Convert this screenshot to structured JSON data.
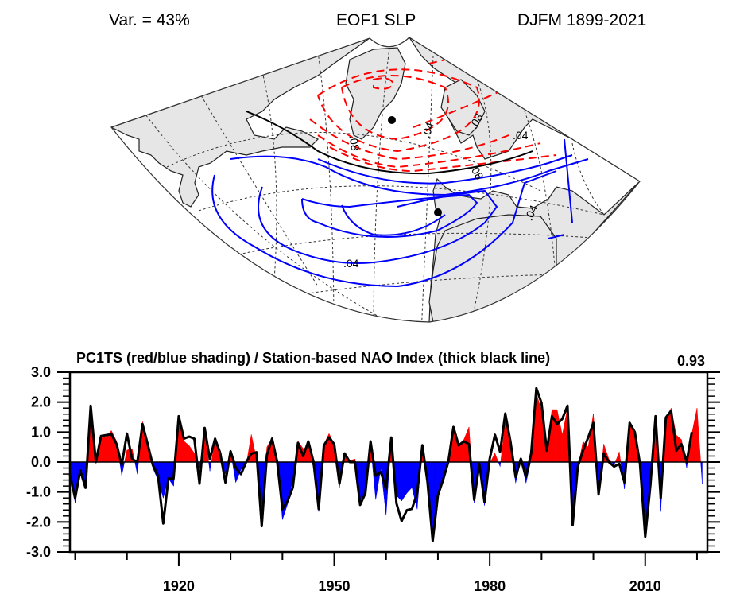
{
  "header": {
    "variance": "Var. = 43%",
    "title": "EOF1 SLP",
    "period": "DJFM 1899-2021"
  },
  "map": {
    "projection": "North Atlantic conic sector",
    "contour_labels": [
      ".04",
      ".04",
      ".04",
      ".08",
      ".08",
      ".08",
      ".04"
    ],
    "colors": {
      "positive": "#0000ff",
      "negative": "#ff0000",
      "zero": "#000000",
      "land": "#e6e6e6"
    },
    "stations": [
      "Iceland (Reykjavik)",
      "Portugal (Lisbon)"
    ]
  },
  "chart_data": {
    "type": "area",
    "title": "PC1TS (red/blue shading) / Station-based NAO Index (thick black line)",
    "correlation_label": "0.93",
    "xlabel": "",
    "ylabel": "",
    "xlim": [
      1899,
      2022
    ],
    "ylim": [
      -3.0,
      3.0
    ],
    "yticks": [
      "3.0",
      "2.0",
      "1.0",
      "0.0",
      "-1.0",
      "-2.0",
      "-3.0"
    ],
    "ytick_values": [
      3,
      2,
      1,
      0,
      -1,
      -2,
      -3
    ],
    "xticks": [
      "1920",
      "1950",
      "1980",
      "2010"
    ],
    "xtick_values": [
      1920,
      1950,
      1980,
      2010
    ],
    "positive_color": "#ff0000",
    "negative_color": "#0000ff",
    "line_color": "#000000",
    "years": [
      1899,
      1900,
      1901,
      1902,
      1903,
      1904,
      1905,
      1906,
      1907,
      1908,
      1909,
      1910,
      1911,
      1912,
      1913,
      1914,
      1915,
      1916,
      1917,
      1918,
      1919,
      1920,
      1921,
      1922,
      1923,
      1924,
      1925,
      1926,
      1927,
      1928,
      1929,
      1930,
      1931,
      1932,
      1933,
      1934,
      1935,
      1936,
      1937,
      1938,
      1939,
      1940,
      1941,
      1942,
      1943,
      1944,
      1945,
      1946,
      1947,
      1948,
      1949,
      1950,
      1951,
      1952,
      1953,
      1954,
      1955,
      1956,
      1957,
      1958,
      1959,
      1960,
      1961,
      1962,
      1963,
      1964,
      1965,
      1966,
      1967,
      1968,
      1969,
      1970,
      1971,
      1972,
      1973,
      1974,
      1975,
      1976,
      1977,
      1978,
      1979,
      1980,
      1981,
      1982,
      1983,
      1984,
      1985,
      1986,
      1987,
      1988,
      1989,
      1990,
      1991,
      1992,
      1993,
      1994,
      1995,
      1996,
      1997,
      1998,
      1999,
      2000,
      2001,
      2002,
      2003,
      2004,
      2005,
      2006,
      2007,
      2008,
      2009,
      2010,
      2011,
      2012,
      2013,
      2014,
      2015,
      2016,
      2017,
      2018,
      2019,
      2020,
      2021
    ],
    "series": [
      {
        "name": "PC1TS",
        "style": "shading",
        "values": [
          -0.5,
          -1.35,
          -0.3,
          -0.85,
          1.6,
          0.05,
          0.8,
          0.85,
          1.05,
          0.7,
          -0.45,
          0.4,
          0.45,
          -0.4,
          1.35,
          0.5,
          -0.2,
          -0.6,
          -1.2,
          -0.55,
          -0.8,
          1.45,
          0.7,
          0.55,
          0.3,
          -0.2,
          1.0,
          -0.3,
          0.75,
          0.35,
          -0.4,
          0.35,
          -0.68,
          -0.25,
          -0.1,
          0.92,
          0.1,
          -2.0,
          0.5,
          0.8,
          0.1,
          -1.92,
          -1.4,
          -0.6,
          0.7,
          0.45,
          0.5,
          -0.2,
          -1.65,
          0.6,
          0.95,
          0.6,
          -0.85,
          0.3,
          0.05,
          0.1,
          -1.3,
          -1.0,
          0.6,
          -1.25,
          -0.2,
          -1.78,
          0.85,
          -1.12,
          -1.3,
          -1.04,
          -0.85,
          -1.57,
          0.6,
          -0.6,
          -2.55,
          -1.1,
          -0.6,
          0.0,
          1.1,
          0.5,
          0.75,
          1.17,
          -1.35,
          -0.1,
          -1.45,
          -0.05,
          0.3,
          -0.15,
          1.35,
          0.65,
          -0.7,
          0.05,
          -0.7,
          0.1,
          2.3,
          1.7,
          0.4,
          1.75,
          1.75,
          0.91,
          1.8,
          -1.9,
          -0.2,
          0.69,
          0.5,
          1.62,
          -1.05,
          0.6,
          0.1,
          -0.1,
          0.34,
          -0.9,
          1.3,
          0.85,
          -0.1,
          -2.55,
          -0.4,
          1.5,
          -1.65,
          1.45,
          1.8,
          0.9,
          0.75,
          -0.2,
          0.95,
          1.8,
          -0.72
        ]
      },
      {
        "name": "Station-based NAO Index",
        "style": "line",
        "values": [
          -0.42,
          -1.21,
          -0.28,
          -0.86,
          1.88,
          0.0,
          0.87,
          0.9,
          0.93,
          0.6,
          -0.1,
          0.95,
          0.1,
          0.0,
          1.27,
          0.6,
          -0.1,
          -0.45,
          -2.05,
          -0.55,
          -0.55,
          1.53,
          0.78,
          0.85,
          0.78,
          -0.72,
          1.14,
          0.1,
          0.78,
          0.3,
          -0.68,
          0.36,
          -0.2,
          -0.4,
          0.0,
          0.28,
          0.33,
          -2.14,
          0.24,
          0.78,
          0.0,
          -1.57,
          -1.3,
          -0.85,
          0.64,
          0.2,
          0.69,
          0.0,
          -1.57,
          0.56,
          0.82,
          0.6,
          -0.72,
          0.29,
          0.0,
          0.0,
          -1.43,
          -1.04,
          0.69,
          -0.46,
          -0.33,
          -0.9,
          0.82,
          -1.38,
          -1.97,
          -1.61,
          -1.56,
          -1.04,
          0.56,
          -0.68,
          -2.63,
          -1.12,
          -0.59,
          0.0,
          1.17,
          0.56,
          0.69,
          0.6,
          -1.26,
          -0.06,
          -1.34,
          0.11,
          0.91,
          0.34,
          1.62,
          0.69,
          -0.5,
          0.11,
          -0.5,
          0.29,
          2.46,
          1.97,
          0.38,
          1.53,
          1.27,
          1.44,
          1.88,
          -2.1,
          -0.15,
          0.38,
          0.82,
          1.31,
          -1.08,
          0.29,
          0.0,
          -0.15,
          -0.06,
          -0.68,
          1.31,
          1.0,
          -0.06,
          -2.49,
          -0.77,
          1.53,
          -1.21,
          1.49,
          1.71,
          0.38,
          0.6,
          0.0,
          1.0,
          null,
          null
        ]
      }
    ]
  }
}
